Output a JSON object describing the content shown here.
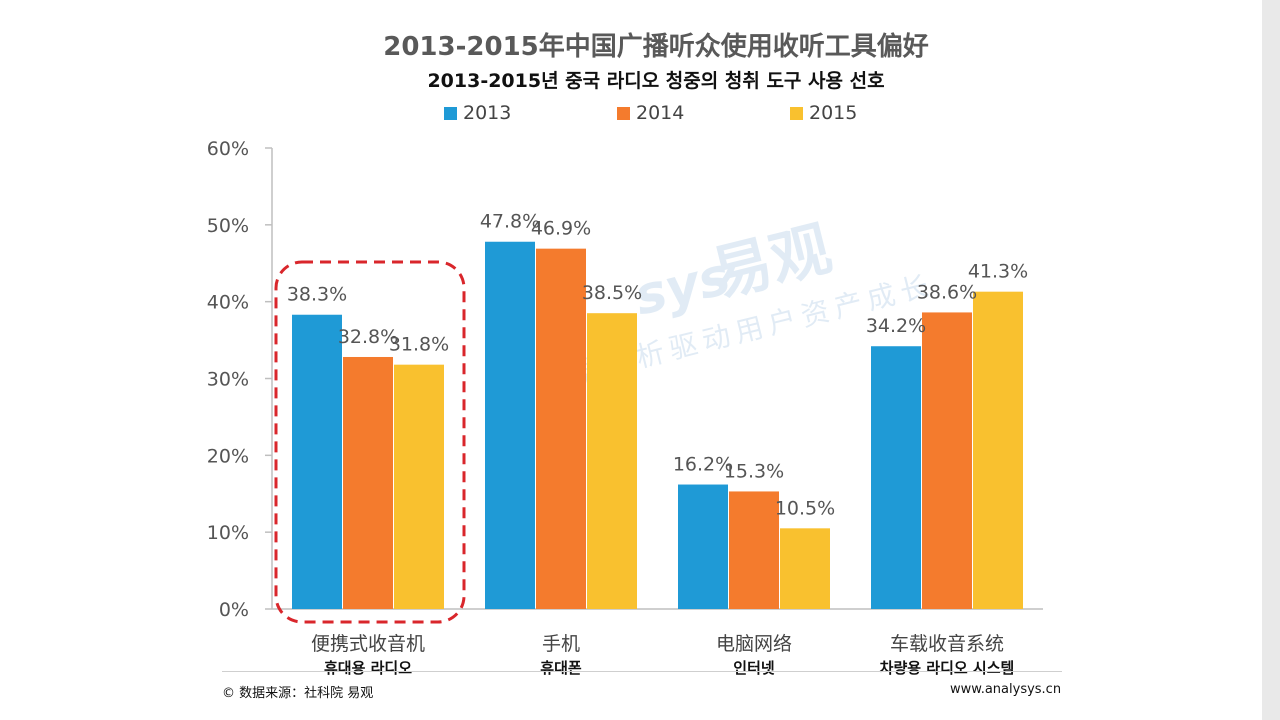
{
  "chart_data": {
    "type": "bar",
    "title": "2013-2015年中国广播听众使用收听工具偏好",
    "subtitle": "2013-2015년 중국 라디오 청중의 청취 도구 사용 선호",
    "categories": [
      "便携式收音机",
      "手机",
      "电脑网络",
      "车载收音系统"
    ],
    "category_subtitles": [
      "휴대용 라디오",
      "휴대폰",
      "인터넷",
      "차량용 라디오 시스템"
    ],
    "series": [
      {
        "name": "2013",
        "color": "#1f9ad6",
        "values": [
          38.3,
          47.8,
          16.2,
          34.2
        ]
      },
      {
        "name": "2014",
        "color": "#f47b2d",
        "values": [
          32.8,
          46.9,
          15.3,
          38.6
        ]
      },
      {
        "name": "2015",
        "color": "#f9c12f",
        "values": [
          31.8,
          38.5,
          10.5,
          41.3
        ]
      }
    ],
    "data_labels": [
      [
        "38.3%",
        "47.8%",
        "16.2%",
        "34.2%"
      ],
      [
        "32.8%",
        "46.9%",
        "15.3%",
        "38.6%"
      ],
      [
        "31.8%",
        "38.5%",
        "10.5%",
        "41.3%"
      ]
    ],
    "y_ticks": [
      "0%",
      "10%",
      "20%",
      "30%",
      "40%",
      "50%",
      "60%"
    ],
    "ylim": [
      0,
      60
    ],
    "xlabel": "",
    "ylabel": "",
    "grid": false,
    "legend": "top",
    "highlight_category": "便携式收音机"
  },
  "watermark": {
    "brand": "易观",
    "brand_latin": "sys",
    "slogan": "数据分析驱动用户资产成长"
  },
  "footer": {
    "source": "© 数据来源：社科院 易观",
    "site": "www.analysys.cn"
  }
}
